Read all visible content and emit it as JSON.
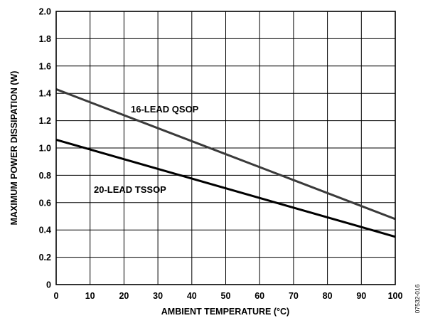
{
  "chart_data": {
    "type": "line",
    "xlabel": "AMBIENT TEMPERATURE (°C)",
    "ylabel": "MAXIMUM POWER DISSIPATION (W)",
    "xlim": [
      0,
      100
    ],
    "ylim": [
      0,
      2.0
    ],
    "x_ticks": [
      "0",
      "10",
      "20",
      "30",
      "40",
      "50",
      "60",
      "70",
      "80",
      "90",
      "100"
    ],
    "y_ticks": [
      "0",
      "0.2",
      "0.4",
      "0.6",
      "0.8",
      "1.0",
      "1.2",
      "1.4",
      "1.6",
      "1.8",
      "2.0"
    ],
    "grid": true,
    "series": [
      {
        "name": "16-LEAD QSOP",
        "x": [
          0,
          100
        ],
        "y": [
          1.43,
          0.48
        ],
        "color": "#3a3a3a"
      },
      {
        "name": "20-LEAD TSSOP",
        "x": [
          0,
          100
        ],
        "y": [
          1.06,
          0.35
        ],
        "color": "#000000"
      }
    ],
    "figure_id": "07532-016"
  }
}
